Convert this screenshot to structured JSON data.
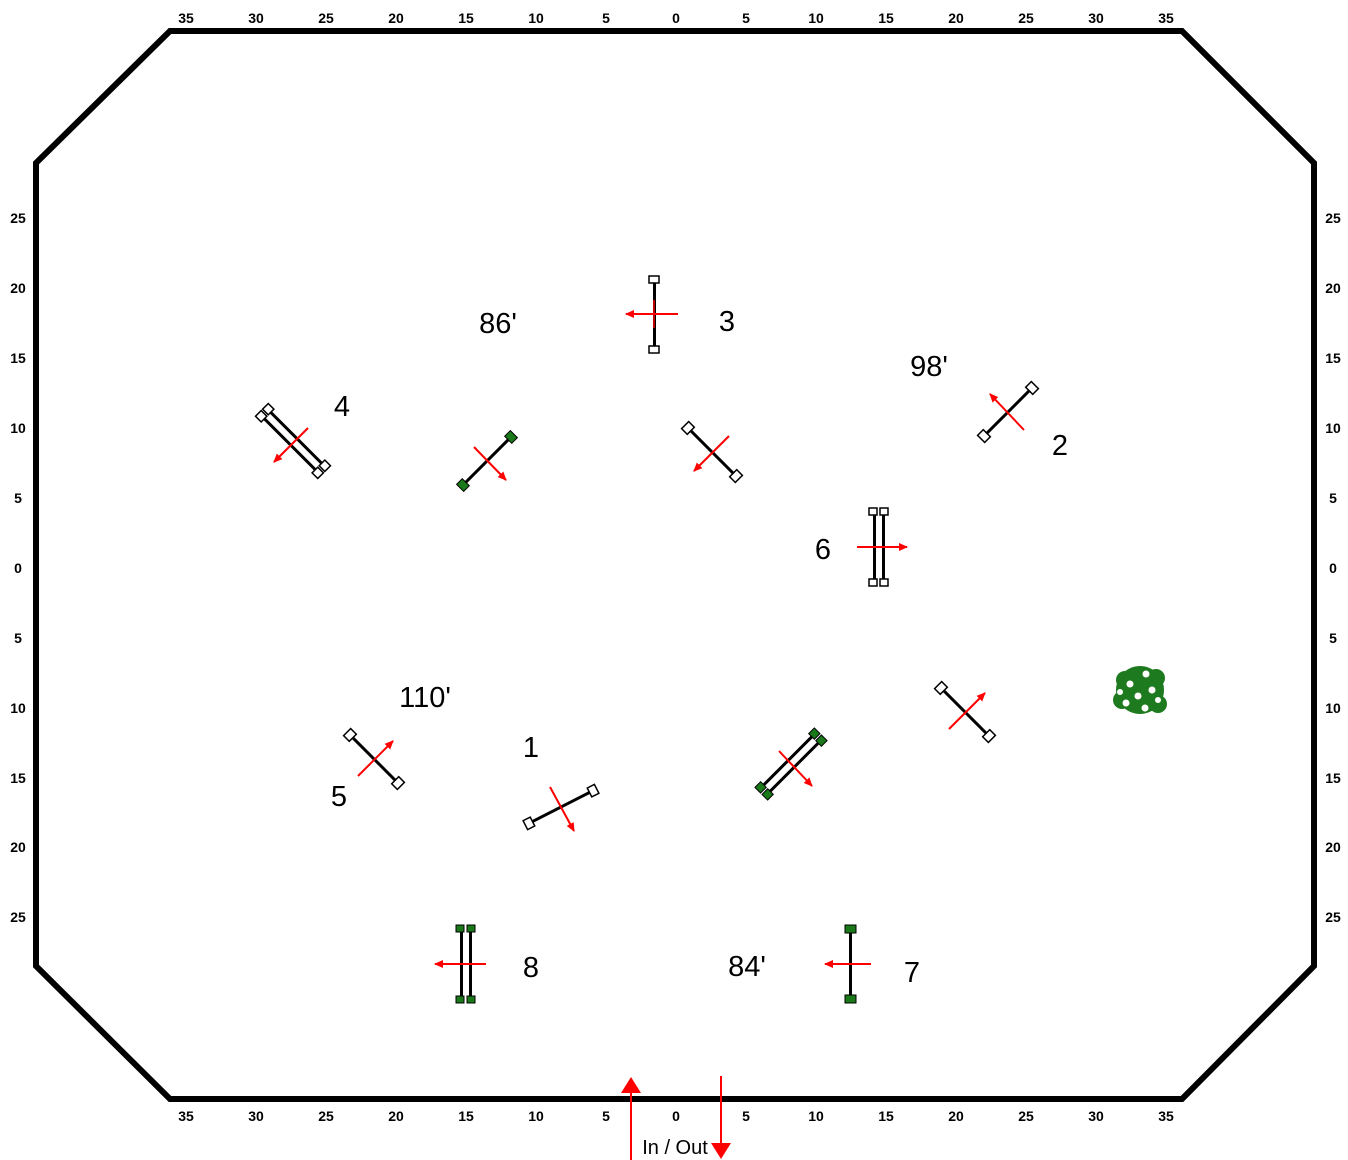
{
  "axis": {
    "top": [
      "35",
      "30",
      "25",
      "20",
      "15",
      "10",
      "5",
      "0",
      "5",
      "10",
      "15",
      "20",
      "25",
      "30",
      "35"
    ],
    "bottom": [
      "35",
      "30",
      "25",
      "20",
      "15",
      "10",
      "5",
      "0",
      "5",
      "10",
      "15",
      "20",
      "25",
      "30",
      "35"
    ],
    "left": [
      "25",
      "20",
      "15",
      "10",
      "5",
      "0",
      "5",
      "10",
      "15",
      "20",
      "25"
    ],
    "right": [
      "25",
      "20",
      "15",
      "10",
      "5",
      "0",
      "5",
      "10",
      "15",
      "20",
      "25"
    ]
  },
  "jump_numbers": [
    "1",
    "2",
    "3",
    "4",
    "5",
    "6",
    "7",
    "8"
  ],
  "distances": [
    "86'",
    "98'",
    "110'",
    "84'"
  ],
  "entrance": {
    "label": "In / Out"
  },
  "colors": {
    "arena_border": "#000000",
    "arrow": "#ff0000",
    "standard_green": "#1a7a1a",
    "standard_white": "#ffffff",
    "decoration": "#1e7a1e"
  },
  "icons": {
    "decoration": "flower-bush-icon"
  }
}
